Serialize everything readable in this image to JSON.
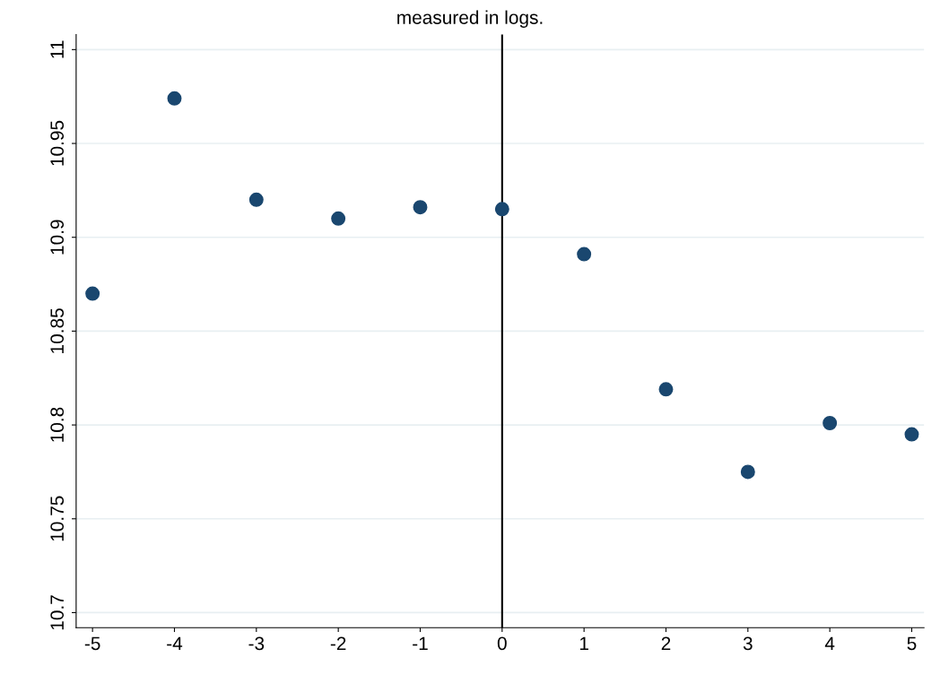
{
  "chart_data": {
    "type": "scatter",
    "title": "measured in logs.",
    "x": [
      -5,
      -4,
      -3,
      -2,
      -1,
      0,
      1,
      2,
      3,
      4,
      5
    ],
    "series": [
      {
        "color": "#1a476f",
        "values": [
          10.87,
          10.974,
          10.92,
          10.91,
          10.916,
          10.915,
          10.891,
          10.819,
          10.775,
          10.801,
          10.795
        ]
      }
    ],
    "xlim": [
      -5.2,
      5.15
    ],
    "xticks": [
      -5,
      -4,
      -3,
      -2,
      -1,
      0,
      1,
      2,
      3,
      4,
      5
    ],
    "ylim": [
      10.692,
      11.008
    ],
    "yticks": [
      10.7,
      10.75,
      10.8,
      10.85,
      10.9,
      10.95,
      11
    ],
    "ref_lines": [
      {
        "axis": "x",
        "value": 0,
        "color": "#000000"
      }
    ],
    "grid": "y",
    "marker": "circle",
    "legend": false
  }
}
